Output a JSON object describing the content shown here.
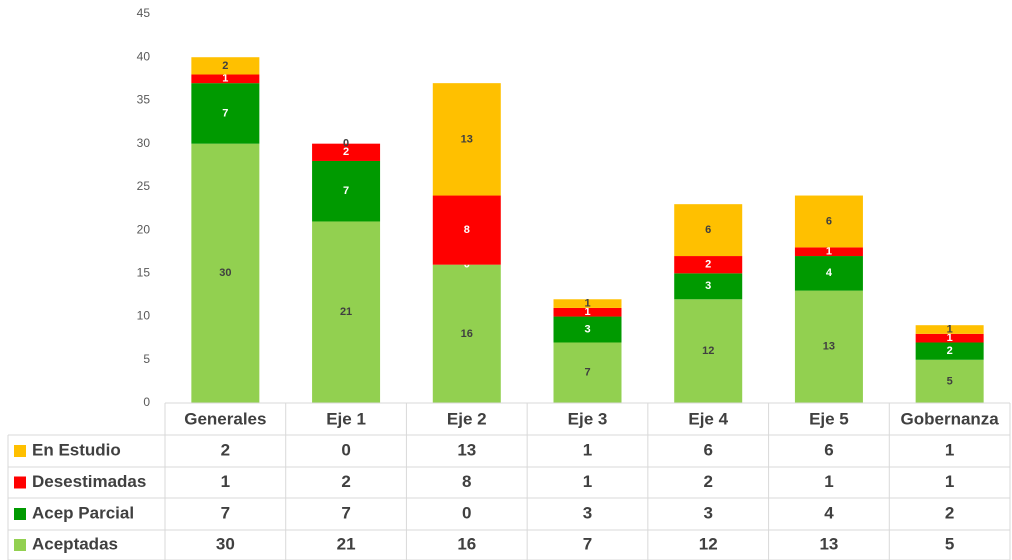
{
  "chart_data": {
    "type": "stacked_bar",
    "categories": [
      "Generales",
      "Eje 1",
      "Eje 2",
      "Eje 3",
      "Eje 4",
      "Eje 5",
      "Gobernanza"
    ],
    "series": [
      {
        "name": "Aceptadas",
        "color": "#92d050",
        "label_color": "#404040",
        "values": [
          30,
          21,
          16,
          7,
          12,
          13,
          5
        ]
      },
      {
        "name": "Acep Parcial",
        "color": "#009a00",
        "label_color": "#ffffff",
        "values": [
          7,
          7,
          0,
          3,
          3,
          4,
          2
        ]
      },
      {
        "name": "Desestimadas",
        "color": "#ff0000",
        "label_color": "#ffffff",
        "values": [
          1,
          2,
          8,
          1,
          2,
          1,
          1
        ]
      },
      {
        "name": "En Estudio",
        "color": "#ffc000",
        "label_color": "#404040",
        "values": [
          2,
          0,
          13,
          1,
          6,
          6,
          1
        ]
      }
    ],
    "ylim": [
      0,
      45
    ],
    "yticks": [
      0,
      5,
      10,
      15,
      20,
      25,
      30,
      35,
      40,
      45
    ],
    "grid": false,
    "data_table": true
  }
}
